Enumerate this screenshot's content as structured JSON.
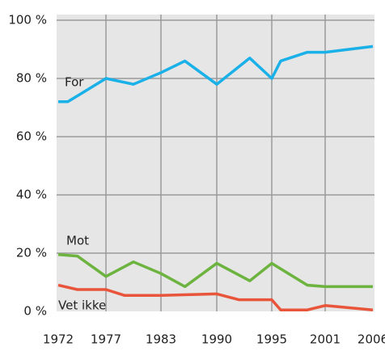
{
  "chart_data": {
    "type": "line",
    "xlim": [
      1972,
      2006
    ],
    "xticks": [
      1972,
      1977,
      1983,
      1990,
      1995,
      2001,
      2006
    ],
    "ylim": [
      0,
      100
    ],
    "yticks": [
      {
        "value": 0,
        "label": "0 %"
      },
      {
        "value": 20,
        "label": "20 %"
      },
      {
        "value": 40,
        "label": "40 %"
      },
      {
        "value": 60,
        "label": "60 %"
      },
      {
        "value": 80,
        "label": "80 %"
      },
      {
        "value": 100,
        "label": "100 %"
      }
    ],
    "grid": true,
    "series": [
      {
        "name": "For",
        "color": "#1ab0e8",
        "x": [
          1972,
          1973,
          1974,
          1977,
          1980,
          1983,
          1986,
          1990,
          1993,
          1995,
          1996,
          1999,
          2001,
          2006
        ],
        "values": [
          72,
          72,
          74,
          80,
          78,
          82,
          86,
          78,
          87,
          80,
          86,
          89,
          89,
          91
        ]
      },
      {
        "name": "Mot",
        "color": "#6db33f",
        "x": [
          1972,
          1974,
          1977,
          1980,
          1983,
          1986,
          1990,
          1993,
          1995,
          1999,
          2001,
          2006
        ],
        "values": [
          19.5,
          19,
          12,
          17,
          13,
          8.5,
          16.5,
          10.5,
          16.5,
          9,
          8.5,
          8.5
        ]
      },
      {
        "name": "Vet ikke",
        "color": "#e8553a",
        "x": [
          1972,
          1974,
          1977,
          1979,
          1983,
          1990,
          1992,
          1995,
          1996,
          1999,
          2001,
          2006
        ],
        "values": [
          9,
          7.5,
          7.5,
          5.5,
          5.5,
          6,
          4,
          4,
          0.5,
          0.5,
          2,
          0.5
        ]
      }
    ]
  }
}
